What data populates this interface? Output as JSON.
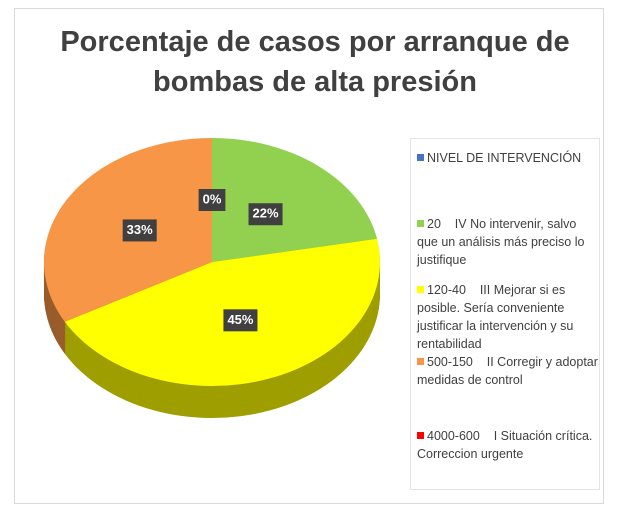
{
  "chart_data": {
    "type": "pie",
    "title": "Porcentaje de casos por arranque de bombas de alta presión",
    "categories": [
      "NIVEL DE INTERVENCIÓN",
      "20    IV No intervenir, salvo que un análisis más preciso lo justifique",
      "120-40    III Mejorar si es posible. Sería conveniente justificar la intervención y su rentabilidad",
      "500-150    II Corregir y adoptar medidas de control",
      "4000-600    I Situación crítica. Correccion urgente"
    ],
    "values": [
      0,
      22,
      45,
      33,
      null
    ],
    "value_labels": [
      "0%",
      "22%",
      "45%",
      "33%",
      null
    ],
    "colors": [
      "#4472c4",
      "#92d050",
      "#ffff00",
      "#f79646",
      "#ff0000"
    ],
    "legend": "right"
  }
}
